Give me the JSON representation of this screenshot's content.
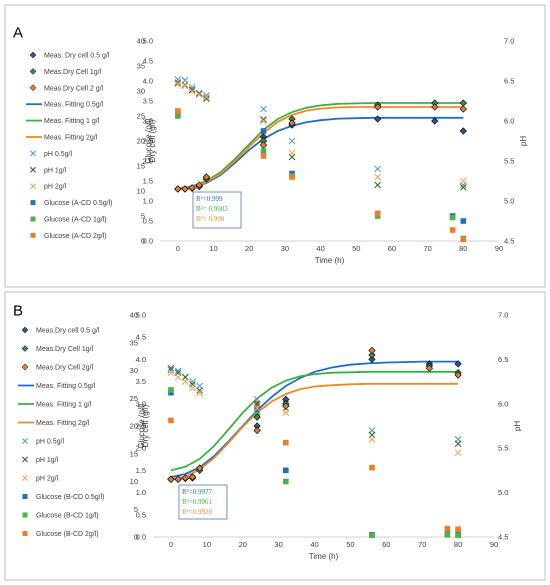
{
  "chart_data": [
    {
      "type": "scatter",
      "panel_label": "A",
      "xlabel": "Time (h)",
      "ylabel_left_outer": "Glucose (g/l)",
      "ylabel_left_inner": "Dry cell (g/l)",
      "ylabel_right": "pH",
      "xlim": [
        -5,
        90
      ],
      "xticks": [
        "0",
        "10",
        "20",
        "30",
        "40",
        "50",
        "60",
        "70",
        "80",
        "90"
      ],
      "glucose_ylim": [
        0,
        40
      ],
      "glucose_ticks": [
        "0",
        "5",
        "10",
        "15",
        "20",
        "25",
        "30",
        "35",
        "40"
      ],
      "drycell_ylim": [
        0,
        5
      ],
      "drycell_ticks": [
        "0.0",
        "0.5",
        "1.0",
        "1.5",
        "2.0",
        "2.5",
        "3.0",
        "3.5",
        "4.0",
        "4.5",
        "5.0"
      ],
      "ph_ylim": [
        4.5,
        7.0
      ],
      "ph_ticks": [
        "4.5",
        "5.0",
        "5.5",
        "6.0",
        "6.5",
        "7.0"
      ],
      "legend": [
        {
          "label": "Meas. Dry cell 0.5 g/l",
          "marker": "diamond",
          "color": "#2e5597"
        },
        {
          "label": "Meas.Dry Cell 1g/l",
          "marker": "diamond",
          "color": "#3f8e3f"
        },
        {
          "label": "Meas.Dry Cell 2 g/l",
          "marker": "diamond",
          "color": "#e07b39"
        },
        {
          "label": "Meas. Fitting 0.5g/l",
          "marker": "line",
          "color": "#1f6fc2"
        },
        {
          "label": "Meas. Fitting 1 g/l",
          "marker": "line",
          "color": "#3cb043"
        },
        {
          "label": "Meas. Fitting 2g/l",
          "marker": "line",
          "color": "#f08a24"
        },
        {
          "label": "pH 0.5g/l",
          "marker": "x",
          "color": "#5b9bd5"
        },
        {
          "label": "pH 1g/l",
          "marker": "x",
          "color": "#2f6b2f"
        },
        {
          "label": "pH 2g/l",
          "marker": "x",
          "color": "#f4a460"
        },
        {
          "label": "Glucose (A-CD 0.5g/l)",
          "marker": "square",
          "color": "#1f6fc2"
        },
        {
          "label": "Glucose (A-CD 1g/l)",
          "marker": "square",
          "color": "#4caf50"
        },
        {
          "label": "Glucose (A-CD 2g/l)",
          "marker": "square",
          "color": "#f07c28"
        }
      ],
      "r2": [
        {
          "text": "R²=0.999",
          "color": "#1f6fc2"
        },
        {
          "text": "R²= 0.9983",
          "color": "#3cb043"
        },
        {
          "text": "R²= 0.998",
          "color": "#f08a24"
        }
      ],
      "series": [
        {
          "name": "Meas. Dry cell 0.5 g/l",
          "axis": "drycell",
          "kind": "diamond",
          "color": "#2e5597",
          "x": [
            0,
            2,
            4,
            6,
            8,
            24,
            32,
            56,
            72,
            80
          ],
          "y": [
            1.3,
            1.3,
            1.32,
            1.38,
            1.6,
            2.6,
            2.9,
            3.05,
            3.0,
            2.75
          ]
        },
        {
          "name": "Meas.Dry Cell 1g/l",
          "axis": "drycell",
          "kind": "diamond",
          "color": "#3f8e3f",
          "x": [
            0,
            2,
            4,
            6,
            8,
            24,
            32,
            56,
            72,
            80
          ],
          "y": [
            1.3,
            1.3,
            1.32,
            1.36,
            1.55,
            2.5,
            3.05,
            3.4,
            3.45,
            3.45
          ]
        },
        {
          "name": "Meas.Dry Cell 2 g/l",
          "axis": "drycell",
          "kind": "diamond",
          "color": "#e07b39",
          "x": [
            0,
            2,
            4,
            6,
            8,
            24,
            32,
            56,
            72,
            80
          ],
          "y": [
            1.3,
            1.3,
            1.33,
            1.4,
            1.6,
            2.4,
            2.95,
            3.35,
            3.35,
            3.3
          ]
        },
        {
          "name": "Meas. Fitting 0.5g/l",
          "axis": "drycell",
          "kind": "line",
          "color": "#1f6fc2",
          "x": [
            0,
            4,
            8,
            12,
            16,
            20,
            24,
            28,
            32,
            36,
            40,
            45,
            50,
            55,
            60,
            65,
            70,
            75,
            80
          ],
          "y": [
            1.32,
            1.35,
            1.45,
            1.65,
            1.95,
            2.28,
            2.55,
            2.75,
            2.88,
            2.97,
            3.02,
            3.06,
            3.07,
            3.08,
            3.08,
            3.08,
            3.08,
            3.08,
            3.08
          ]
        },
        {
          "name": "Meas. Fitting 1 g/l",
          "axis": "drycell",
          "kind": "line",
          "color": "#3cb043",
          "x": [
            0,
            4,
            8,
            12,
            16,
            20,
            24,
            28,
            32,
            36,
            40,
            45,
            50,
            55,
            60,
            65,
            70,
            75,
            80
          ],
          "y": [
            1.32,
            1.37,
            1.5,
            1.72,
            2.05,
            2.42,
            2.78,
            3.05,
            3.22,
            3.33,
            3.39,
            3.43,
            3.44,
            3.45,
            3.45,
            3.45,
            3.45,
            3.45,
            3.45
          ]
        },
        {
          "name": "Meas. Fitting 2g/l",
          "axis": "drycell",
          "kind": "line",
          "color": "#f08a24",
          "x": [
            0,
            4,
            8,
            12,
            16,
            20,
            24,
            28,
            32,
            36,
            40,
            45,
            50,
            55,
            60,
            65,
            70,
            75,
            80
          ],
          "y": [
            1.32,
            1.35,
            1.47,
            1.68,
            2.0,
            2.36,
            2.7,
            2.98,
            3.15,
            3.26,
            3.31,
            3.34,
            3.35,
            3.35,
            3.35,
            3.35,
            3.35,
            3.35,
            3.35
          ]
        },
        {
          "name": "pH 0.5g/l",
          "axis": "ph",
          "kind": "x",
          "color": "#5b9bd5",
          "x": [
            0,
            2,
            4,
            6,
            8,
            24,
            32,
            56,
            80
          ],
          "y": [
            6.52,
            6.51,
            6.42,
            6.35,
            6.32,
            6.15,
            5.75,
            5.4,
            5.2
          ]
        },
        {
          "name": "pH 1g/l",
          "axis": "ph",
          "kind": "x",
          "color": "#2f6b2f",
          "x": [
            0,
            2,
            4,
            6,
            8,
            24,
            32,
            56,
            80
          ],
          "y": [
            6.48,
            6.45,
            6.39,
            6.34,
            6.28,
            6.02,
            5.55,
            5.2,
            5.17
          ]
        },
        {
          "name": "pH 2g/l",
          "axis": "ph",
          "kind": "x",
          "color": "#f4a460",
          "x": [
            0,
            2,
            4,
            6,
            8,
            24,
            32,
            56,
            80
          ],
          "y": [
            6.46,
            6.44,
            6.37,
            6.33,
            6.3,
            6.0,
            5.6,
            5.3,
            5.25
          ]
        },
        {
          "name": "Glucose (A-CD 0.5g/l)",
          "axis": "glucose",
          "kind": "square",
          "color": "#1f6fc2",
          "x": [
            0,
            24,
            32,
            56,
            77,
            80
          ],
          "y": [
            25.5,
            22.0,
            13.5,
            5.5,
            5.0,
            4.0
          ]
        },
        {
          "name": "Glucose (A-CD 1g/l)",
          "axis": "glucose",
          "kind": "square",
          "color": "#4caf50",
          "x": [
            0,
            24,
            32,
            56,
            77,
            80
          ],
          "y": [
            25.0,
            18.0,
            13.0,
            5.0,
            4.7,
            0.5
          ]
        },
        {
          "name": "Glucose (A-CD 2g/l)",
          "axis": "glucose",
          "kind": "square",
          "color": "#f07c28",
          "x": [
            0,
            24,
            32,
            56,
            77,
            80
          ],
          "y": [
            26.0,
            17.0,
            12.8,
            5.5,
            2.2,
            0.3
          ]
        }
      ]
    },
    {
      "type": "scatter",
      "panel_label": "B",
      "xlabel": "Time (h)",
      "ylabel_left_outer": "Glucose (g/l)",
      "ylabel_left_inner": "Dry cell (g/l)",
      "ylabel_right": "pH",
      "xlim": [
        -5,
        90
      ],
      "xticks": [
        "0",
        "10",
        "20",
        "30",
        "40",
        "50",
        "60",
        "70",
        "80",
        "90"
      ],
      "glucose_ylim": [
        0,
        40
      ],
      "glucose_ticks": [
        "0",
        "5",
        "10",
        "15",
        "20",
        "25",
        "30",
        "35",
        "40"
      ],
      "drycell_ylim": [
        0,
        5
      ],
      "drycell_ticks": [
        "0.0",
        "0.5",
        "1.0",
        "1.5",
        "2.0",
        "2.5",
        "3.0",
        "3.5",
        "4.0",
        "4.5",
        "5.0"
      ],
      "ph_ylim": [
        4.5,
        7.0
      ],
      "ph_ticks": [
        "4.5",
        "5.0",
        "5.5",
        "6.0",
        "6.5",
        "7.0"
      ],
      "legend": [
        {
          "label": "Meas.Dry cell 0.5 g/l",
          "marker": "diamond",
          "color": "#2e5597"
        },
        {
          "label": "Meas.Dry Cell 1g/l",
          "marker": "diamond",
          "color": "#3f8e3f"
        },
        {
          "label": "Meas.Dry Cell 2g/l",
          "marker": "diamond",
          "color": "#e07b39"
        },
        {
          "label": "Meas. Fitting 0.5g/l",
          "marker": "line",
          "color": "#1f6fc2"
        },
        {
          "label": "Meas. Fitting 1 g/l",
          "marker": "line",
          "color": "#3cb043"
        },
        {
          "label": "Meas. Fitting 2g/l",
          "marker": "line",
          "color": "#f08a24"
        },
        {
          "label": "pH 0.5g/l",
          "marker": "x",
          "color": "#5b9bd5"
        },
        {
          "label": "pH 1g/l",
          "marker": "x",
          "color": "#2f6b2f"
        },
        {
          "label": "pH 2g/l",
          "marker": "x",
          "color": "#f4a460"
        },
        {
          "label": "Glucose (B-CD 0.5g/l)",
          "marker": "square",
          "color": "#1f6fc2"
        },
        {
          "label": "Glucose (B-CD 1g/l)",
          "marker": "square",
          "color": "#4caf50"
        },
        {
          "label": "Glucose (B-CD 2g/l)",
          "marker": "square",
          "color": "#f07c28"
        }
      ],
      "r2": [
        {
          "text": "R²=0.9977",
          "color": "#1f6fc2"
        },
        {
          "text": "R²=0.9961",
          "color": "#3cb043"
        },
        {
          "text": "R²=0.9928",
          "color": "#f08a24"
        }
      ],
      "series": [
        {
          "name": "Meas.Dry cell 0.5 g/l",
          "axis": "drycell",
          "kind": "diamond",
          "color": "#2e5597",
          "x": [
            0,
            2,
            4,
            6,
            8,
            24,
            32,
            56,
            72,
            80
          ],
          "y": [
            1.3,
            1.3,
            1.32,
            1.35,
            1.55,
            2.5,
            3.1,
            4.0,
            3.9,
            3.9
          ]
        },
        {
          "name": "Meas.Dry Cell 1g/l",
          "axis": "drycell",
          "kind": "diamond",
          "color": "#3f8e3f",
          "x": [
            0,
            2,
            4,
            6,
            8,
            24,
            32,
            56,
            72,
            80
          ],
          "y": [
            1.3,
            1.3,
            1.32,
            1.33,
            1.5,
            2.7,
            3.0,
            4.1,
            3.85,
            3.7
          ]
        },
        {
          "name": "Meas.Dry Cell 2g/l",
          "axis": "drycell",
          "kind": "diamond",
          "color": "#e07b39",
          "x": [
            0,
            2,
            4,
            6,
            8,
            24,
            32,
            56,
            72,
            80
          ],
          "y": [
            1.3,
            1.3,
            1.33,
            1.35,
            1.55,
            2.4,
            2.95,
            4.2,
            3.8,
            3.65
          ]
        },
        {
          "name": "Meas. Fitting 0.5g/l",
          "axis": "drycell",
          "kind": "line",
          "color": "#1f6fc2",
          "x": [
            0,
            4,
            8,
            12,
            16,
            20,
            24,
            28,
            32,
            36,
            40,
            45,
            50,
            55,
            60,
            65,
            70,
            75,
            80
          ],
          "y": [
            1.35,
            1.42,
            1.57,
            1.82,
            2.15,
            2.5,
            2.85,
            3.15,
            3.4,
            3.58,
            3.72,
            3.82,
            3.88,
            3.91,
            3.93,
            3.94,
            3.95,
            3.95,
            3.95
          ]
        },
        {
          "name": "Meas. Fitting 1 g/l",
          "axis": "drycell",
          "kind": "line",
          "color": "#3cb043",
          "x": [
            0,
            4,
            8,
            12,
            16,
            20,
            24,
            28,
            32,
            36,
            40,
            45,
            50,
            55,
            60,
            65,
            70,
            75,
            80
          ],
          "y": [
            1.5,
            1.58,
            1.76,
            2.05,
            2.42,
            2.8,
            3.12,
            3.36,
            3.52,
            3.62,
            3.67,
            3.7,
            3.71,
            3.72,
            3.72,
            3.72,
            3.72,
            3.72,
            3.72
          ]
        },
        {
          "name": "Meas. Fitting 2g/l",
          "axis": "drycell",
          "kind": "line",
          "color": "#f08a24",
          "x": [
            0,
            4,
            8,
            12,
            16,
            20,
            24,
            28,
            32,
            36,
            40,
            45,
            50,
            55,
            60,
            65,
            70,
            75,
            80
          ],
          "y": [
            1.3,
            1.36,
            1.52,
            1.78,
            2.12,
            2.48,
            2.8,
            3.05,
            3.22,
            3.33,
            3.39,
            3.42,
            3.44,
            3.45,
            3.45,
            3.45,
            3.45,
            3.45,
            3.45
          ]
        },
        {
          "name": "pH 0.5g/l",
          "axis": "ph",
          "kind": "x",
          "color": "#5b9bd5",
          "x": [
            0,
            2,
            4,
            6,
            8,
            24,
            32,
            56,
            80
          ],
          "y": [
            6.38,
            6.37,
            6.3,
            6.25,
            6.2,
            6.05,
            6.0,
            5.7,
            5.6
          ]
        },
        {
          "name": "pH 1g/l",
          "axis": "ph",
          "kind": "x",
          "color": "#2f6b2f",
          "x": [
            0,
            2,
            4,
            6,
            8,
            24,
            32,
            56,
            80
          ],
          "y": [
            6.4,
            6.35,
            6.3,
            6.22,
            6.15,
            6.0,
            5.95,
            5.65,
            5.55
          ]
        },
        {
          "name": "pH 2g/l",
          "axis": "ph",
          "kind": "x",
          "color": "#f4a460",
          "x": [
            0,
            2,
            4,
            6,
            8,
            24,
            32,
            56,
            80
          ],
          "y": [
            6.35,
            6.3,
            6.25,
            6.18,
            6.12,
            5.95,
            5.9,
            5.6,
            5.45
          ]
        },
        {
          "name": "Glucose (B-CD 0.5g/l)",
          "axis": "glucose",
          "kind": "square",
          "color": "#1f6fc2",
          "x": [
            0,
            24,
            32,
            56,
            77,
            80
          ],
          "y": [
            26.0,
            23.0,
            12.0,
            0.4,
            0.5,
            0.5
          ]
        },
        {
          "name": "Glucose (B-CD 1g/l)",
          "axis": "glucose",
          "kind": "square",
          "color": "#4caf50",
          "x": [
            0,
            24,
            32,
            56,
            77,
            80
          ],
          "y": [
            26.5,
            22.0,
            10.0,
            0.3,
            0.4,
            0.3
          ]
        },
        {
          "name": "Glucose (B-CD 2g/l)",
          "axis": "glucose",
          "kind": "square",
          "color": "#f07c28",
          "x": [
            0,
            24,
            32,
            56,
            77,
            80
          ],
          "y": [
            21.0,
            24.0,
            17.0,
            12.5,
            1.5,
            1.4
          ]
        }
      ]
    }
  ]
}
